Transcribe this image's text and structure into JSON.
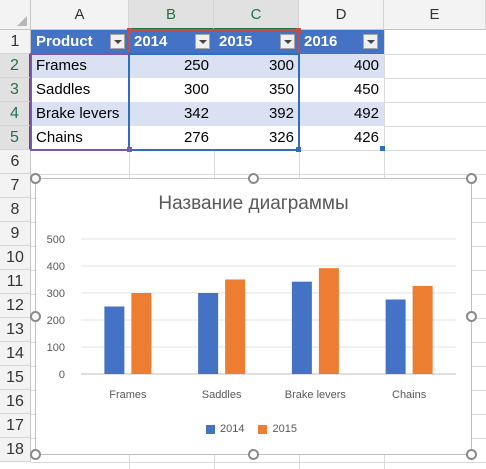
{
  "columns": [
    "A",
    "B",
    "C",
    "D",
    "E"
  ],
  "rows": [
    "1",
    "2",
    "3",
    "4",
    "5",
    "6",
    "7",
    "8",
    "9",
    "10",
    "11",
    "12",
    "13",
    "14",
    "15",
    "16",
    "17",
    "18"
  ],
  "table": {
    "headers": [
      "Product",
      "2014",
      "2015",
      "2016"
    ],
    "rows": [
      [
        "Frames",
        "250",
        "300",
        "400"
      ],
      [
        "Saddles",
        "300",
        "350",
        "450"
      ],
      [
        "Brake levers",
        "342",
        "392",
        "492"
      ],
      [
        "Chains",
        "276",
        "326",
        "426"
      ]
    ]
  },
  "chart_data": {
    "type": "bar",
    "title": "Название диаграммы",
    "categories": [
      "Frames",
      "Saddles",
      "Brake levers",
      "Chains"
    ],
    "series": [
      {
        "name": "2014",
        "values": [
          250,
          300,
          342,
          276
        ],
        "color": "#4472c4"
      },
      {
        "name": "2015",
        "values": [
          300,
          350,
          392,
          326
        ],
        "color": "#ed7d31"
      }
    ],
    "ylim": [
      0,
      500
    ],
    "yticks": [
      "0",
      "100",
      "200",
      "300",
      "400",
      "500"
    ],
    "grid": true,
    "legend_position": "bottom"
  },
  "colors": {
    "table_header": "#4472c4",
    "band_light": "#d9e1f2",
    "selection_green": "#217346"
  }
}
